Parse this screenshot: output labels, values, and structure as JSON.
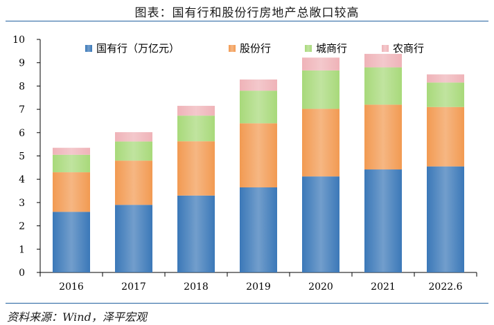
{
  "title": "图表：国有行和股份行房地产总敞口较高",
  "source": "资料来源：Wind，泽平宏观",
  "colors": {
    "rule": "#1f5f9e",
    "series": [
      "#3b78b8",
      "#f29a52",
      "#a8d97a",
      "#efb3b8"
    ]
  },
  "chart_data": {
    "type": "bar",
    "stacked": true,
    "categories": [
      "2016",
      "2017",
      "2018",
      "2019",
      "2020",
      "2021",
      "2022.6"
    ],
    "series": [
      {
        "name": "国有行（万亿元）",
        "values": [
          2.6,
          2.9,
          3.3,
          3.65,
          4.12,
          4.42,
          4.55
        ]
      },
      {
        "name": "股份行",
        "values": [
          1.7,
          1.9,
          2.33,
          2.75,
          2.9,
          2.78,
          2.55
        ]
      },
      {
        "name": "城商行",
        "values": [
          0.75,
          0.82,
          1.1,
          1.4,
          1.65,
          1.6,
          1.05
        ]
      },
      {
        "name": "农商行",
        "values": [
          0.3,
          0.4,
          0.42,
          0.48,
          0.55,
          0.58,
          0.35
        ]
      }
    ],
    "ylim": [
      0,
      10
    ],
    "yticks": [
      "0",
      "1",
      "2",
      "3",
      "4",
      "5",
      "6",
      "7",
      "8",
      "9",
      "10"
    ],
    "legend_position": "top",
    "grid": false
  }
}
